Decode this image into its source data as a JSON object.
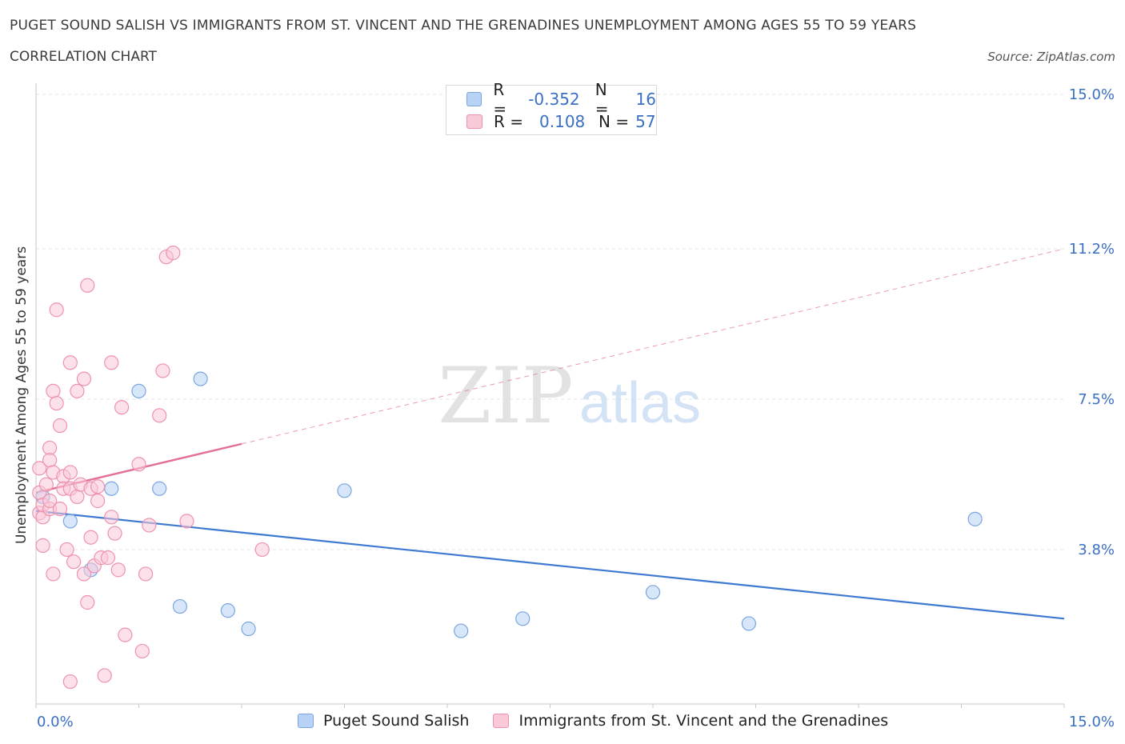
{
  "header": {
    "title": "PUGET SOUND SALISH VS IMMIGRANTS FROM ST. VINCENT AND THE GRENADINES UNEMPLOYMENT AMONG AGES 55 TO 59 YEARS",
    "subtitle": "CORRELATION CHART",
    "source": "Source: ZipAtlas.com"
  },
  "legend": {
    "rows": [
      {
        "r_label": "R =",
        "r_value": "-0.352",
        "n_label": "N =",
        "n_value": "16"
      },
      {
        "r_label": "R =",
        "r_value": "0.108",
        "n_label": "N =",
        "n_value": "57"
      }
    ]
  },
  "watermark": {
    "zip": "ZIP",
    "atlas": "atlas"
  },
  "colors": {
    "blue_fill": "#b8d2f5",
    "blue_stroke": "#7aa6e0",
    "blue_line": "#3d79d0",
    "pink_fill": "#f9c9d8",
    "pink_stroke": "#ee92ae",
    "pink_line": "#e36f98",
    "tick_label": "#3b6fc4",
    "grid": "#e6e6e6"
  },
  "chart_data": {
    "type": "scatter",
    "xlabel": "",
    "ylabel": "Unemployment Among Ages 55 to 59 years",
    "xlim": [
      0,
      15
    ],
    "ylim": [
      0,
      15
    ],
    "x_tick_labels": [
      "0.0%",
      "15.0%"
    ],
    "y_ticks": [
      3.8,
      7.5,
      11.2,
      15.0
    ],
    "y_tick_labels": [
      "3.8%",
      "7.5%",
      "11.2%",
      "15.0%"
    ],
    "grid": "horizontal dashed",
    "legend_position": "top-center",
    "series": [
      {
        "name": "Puget Sound Salish",
        "color": "blue",
        "trend": {
          "x": [
            0.0,
            15.0
          ],
          "y": [
            4.75,
            2.1
          ]
        },
        "points": [
          {
            "x": 0.1,
            "y": 5.1
          },
          {
            "x": 0.5,
            "y": 4.5
          },
          {
            "x": 0.8,
            "y": 3.3
          },
          {
            "x": 1.1,
            "y": 5.3
          },
          {
            "x": 1.5,
            "y": 7.7
          },
          {
            "x": 1.8,
            "y": 5.3
          },
          {
            "x": 2.1,
            "y": 2.4
          },
          {
            "x": 2.4,
            "y": 8.0
          },
          {
            "x": 2.8,
            "y": 2.3
          },
          {
            "x": 3.1,
            "y": 1.85
          },
          {
            "x": 4.5,
            "y": 5.25
          },
          {
            "x": 6.2,
            "y": 1.8
          },
          {
            "x": 7.1,
            "y": 2.1
          },
          {
            "x": 9.0,
            "y": 2.75
          },
          {
            "x": 10.4,
            "y": 1.98
          },
          {
            "x": 13.7,
            "y": 4.55
          }
        ]
      },
      {
        "name": "Immigrants from St. Vincent and the Grenadines",
        "color": "pink",
        "trend": {
          "x": [
            0.0,
            15.0
          ],
          "y": [
            5.2,
            11.2
          ],
          "solid_until_x": 3.0
        },
        "points": [
          {
            "x": 0.05,
            "y": 4.7
          },
          {
            "x": 0.05,
            "y": 5.2
          },
          {
            "x": 0.05,
            "y": 5.8
          },
          {
            "x": 0.1,
            "y": 4.6
          },
          {
            "x": 0.1,
            "y": 4.9
          },
          {
            "x": 0.1,
            "y": 3.9
          },
          {
            "x": 0.15,
            "y": 5.4
          },
          {
            "x": 0.2,
            "y": 6.3
          },
          {
            "x": 0.2,
            "y": 4.8
          },
          {
            "x": 0.2,
            "y": 5.0
          },
          {
            "x": 0.25,
            "y": 3.2
          },
          {
            "x": 0.2,
            "y": 6.0
          },
          {
            "x": 0.25,
            "y": 7.7
          },
          {
            "x": 0.25,
            "y": 5.7
          },
          {
            "x": 0.3,
            "y": 9.7
          },
          {
            "x": 0.3,
            "y": 7.4
          },
          {
            "x": 0.35,
            "y": 6.85
          },
          {
            "x": 0.35,
            "y": 4.8
          },
          {
            "x": 0.4,
            "y": 5.6
          },
          {
            "x": 0.4,
            "y": 5.3
          },
          {
            "x": 0.45,
            "y": 3.8
          },
          {
            "x": 0.5,
            "y": 5.7
          },
          {
            "x": 0.5,
            "y": 8.4
          },
          {
            "x": 0.5,
            "y": 0.55
          },
          {
            "x": 0.5,
            "y": 5.3
          },
          {
            "x": 0.55,
            "y": 3.5
          },
          {
            "x": 0.6,
            "y": 7.7
          },
          {
            "x": 0.6,
            "y": 5.1
          },
          {
            "x": 0.65,
            "y": 5.4
          },
          {
            "x": 0.7,
            "y": 3.2
          },
          {
            "x": 0.7,
            "y": 8.0
          },
          {
            "x": 0.75,
            "y": 2.5
          },
          {
            "x": 0.75,
            "y": 10.3
          },
          {
            "x": 0.8,
            "y": 5.3
          },
          {
            "x": 0.8,
            "y": 4.1
          },
          {
            "x": 0.85,
            "y": 3.4
          },
          {
            "x": 0.9,
            "y": 5.0
          },
          {
            "x": 0.9,
            "y": 5.35
          },
          {
            "x": 0.95,
            "y": 3.6
          },
          {
            "x": 1.0,
            "y": 0.7
          },
          {
            "x": 1.05,
            "y": 3.6
          },
          {
            "x": 1.1,
            "y": 8.4
          },
          {
            "x": 1.1,
            "y": 4.6
          },
          {
            "x": 1.15,
            "y": 4.2
          },
          {
            "x": 1.2,
            "y": 3.3
          },
          {
            "x": 1.25,
            "y": 7.3
          },
          {
            "x": 1.3,
            "y": 1.7
          },
          {
            "x": 1.5,
            "y": 5.9
          },
          {
            "x": 1.55,
            "y": 1.3
          },
          {
            "x": 1.6,
            "y": 3.2
          },
          {
            "x": 1.65,
            "y": 4.4
          },
          {
            "x": 1.8,
            "y": 7.1
          },
          {
            "x": 1.85,
            "y": 8.2
          },
          {
            "x": 1.9,
            "y": 11.0
          },
          {
            "x": 2.0,
            "y": 11.1
          },
          {
            "x": 2.2,
            "y": 4.5
          },
          {
            "x": 3.3,
            "y": 3.8
          }
        ]
      }
    ]
  }
}
